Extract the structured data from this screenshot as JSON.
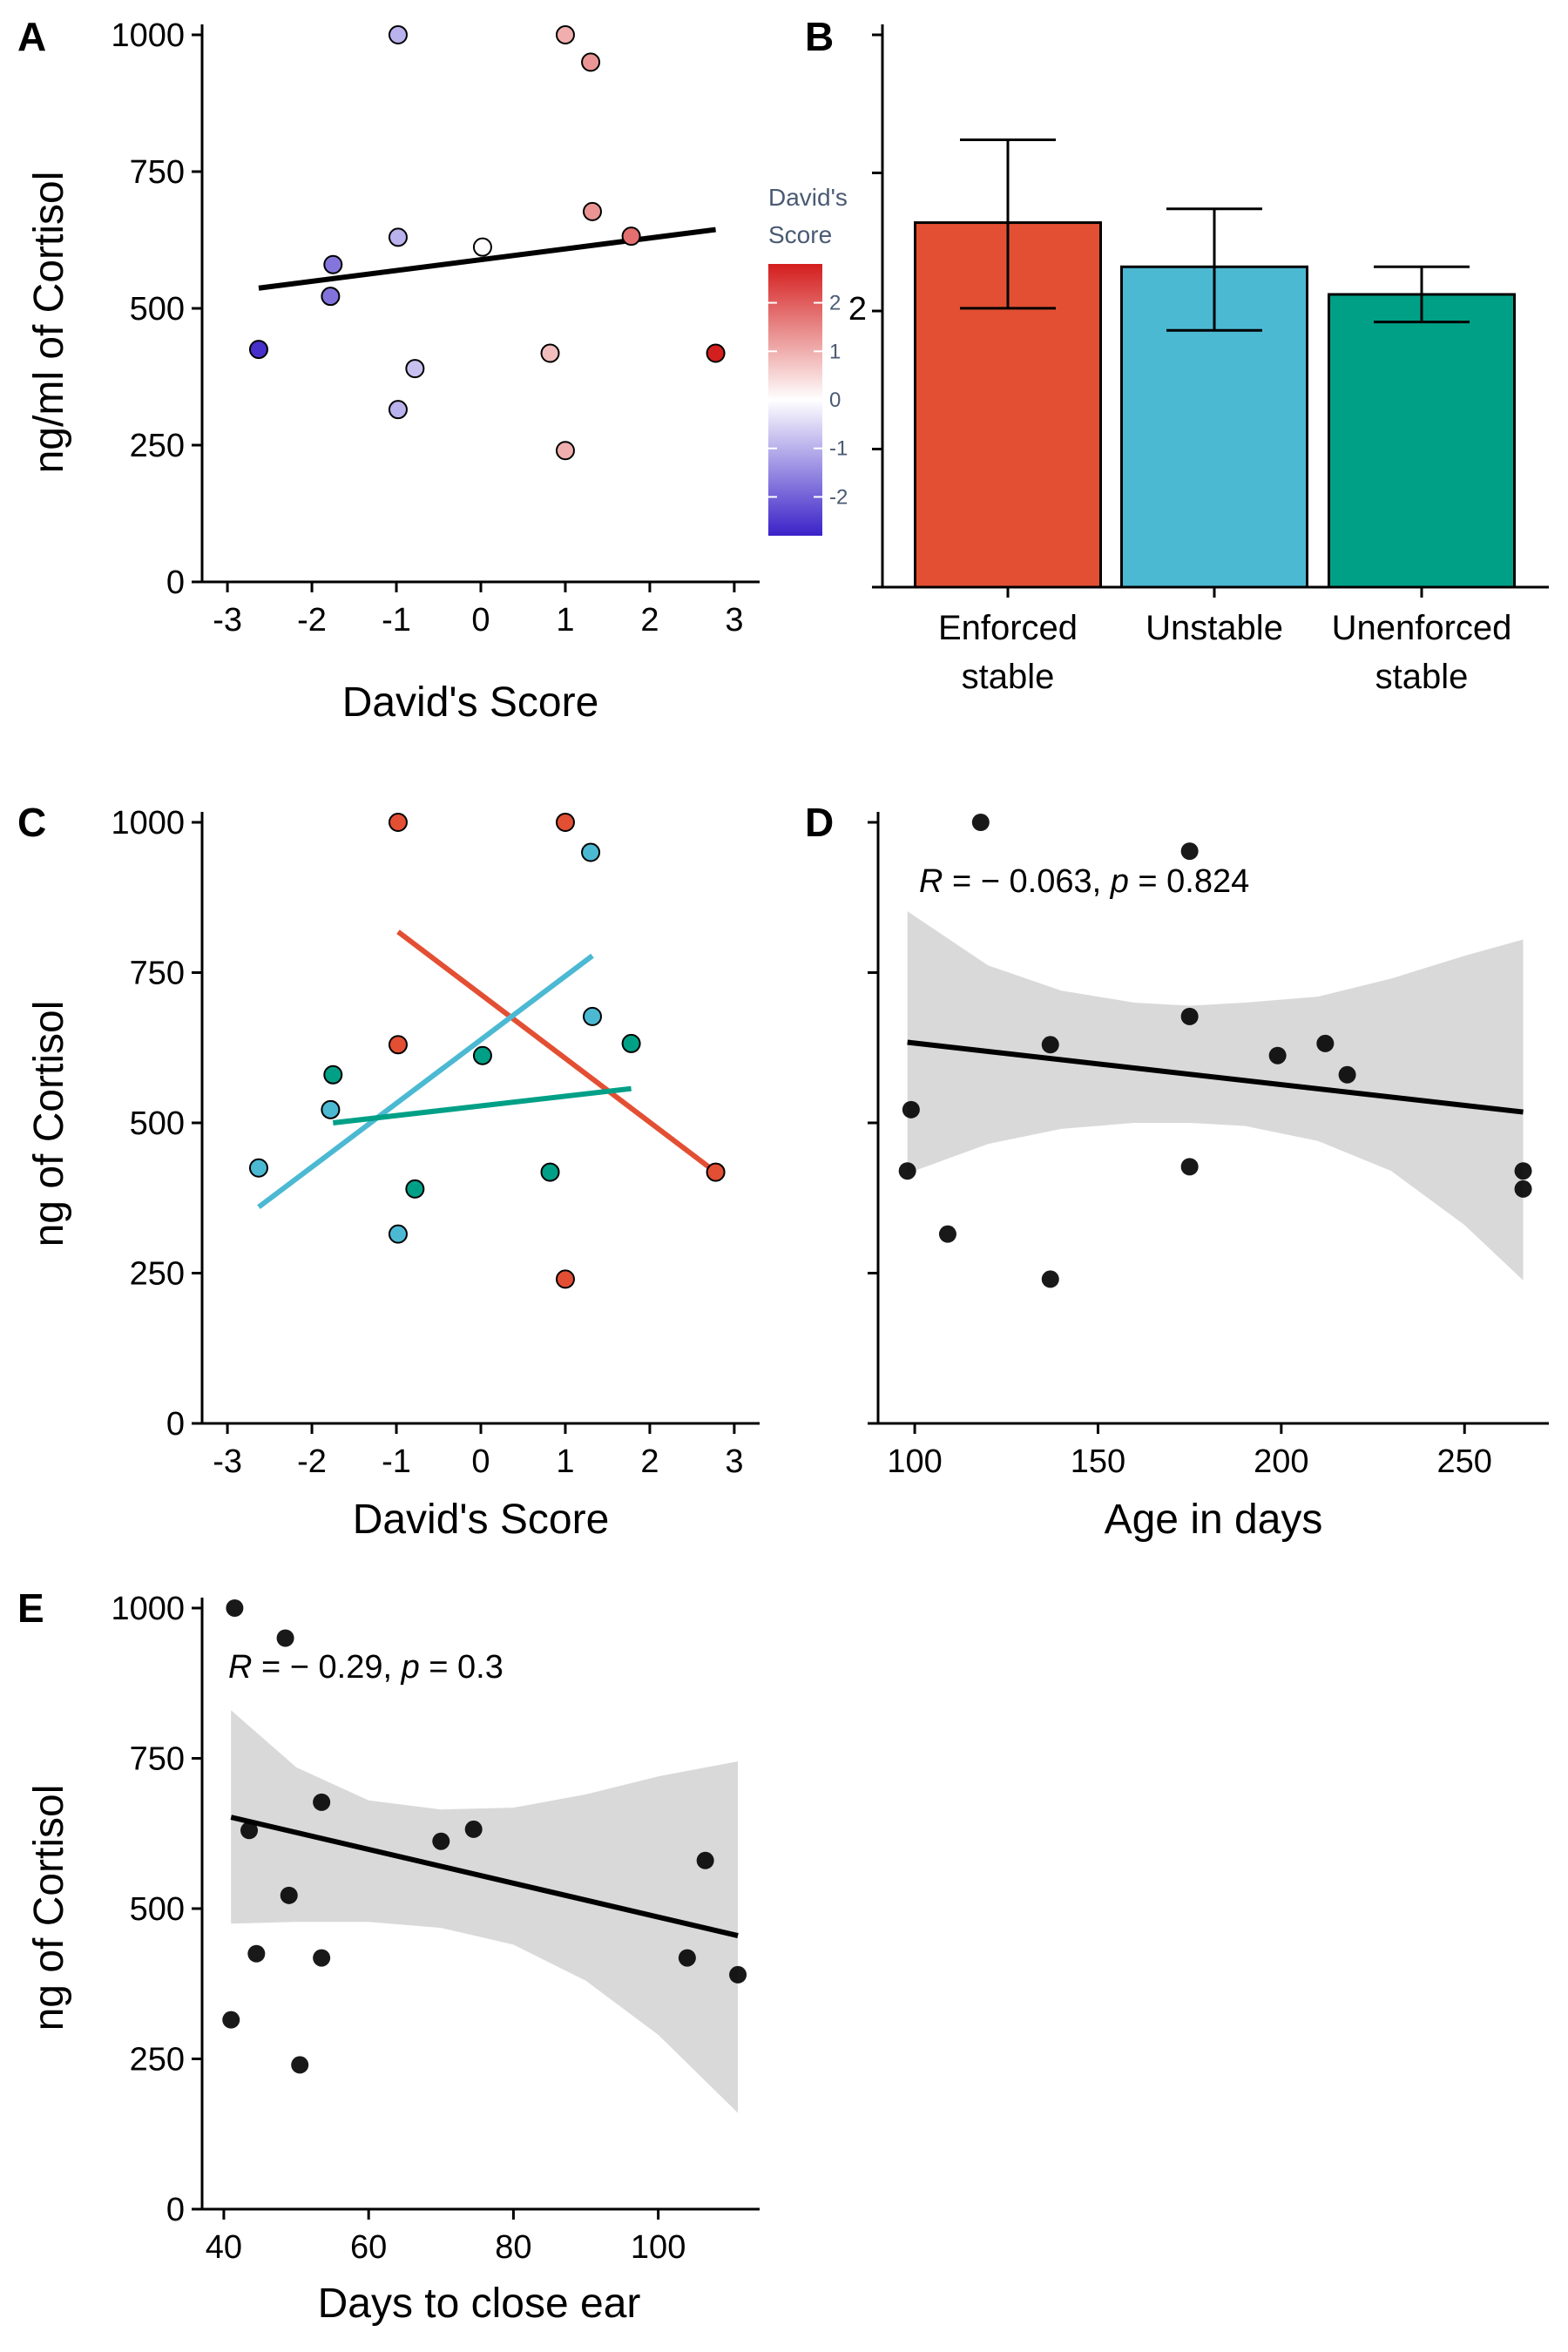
{
  "figure": {
    "panels": [
      "A",
      "B",
      "C",
      "D",
      "E"
    ]
  },
  "chart_data": [
    {
      "panel": "A",
      "type": "scatter",
      "xlabel": "David's Score",
      "ylabel": "ng/ml of Cortisol",
      "xlim": [
        -3.3,
        3.3
      ],
      "ylim": [
        0,
        1000
      ],
      "xticks": [
        -3,
        -2,
        -1,
        0,
        1,
        2,
        3
      ],
      "yticks": [
        0,
        250,
        500,
        750,
        1000
      ],
      "color_scale": {
        "title_line1": "David's",
        "title_line2": "Score",
        "ticks": [
          -2,
          -1,
          0,
          1,
          2
        ],
        "domain": [
          -2.8,
          2.8
        ],
        "low": "#3a22c8",
        "mid": "#ffffff",
        "high": "#d41d1d"
      },
      "points": [
        {
          "x": -2.63,
          "y": 425,
          "c": -2.63
        },
        {
          "x": -1.75,
          "y": 580,
          "c": -1.75
        },
        {
          "x": -1.78,
          "y": 522,
          "c": -1.78
        },
        {
          "x": -0.98,
          "y": 1000,
          "c": -0.98
        },
        {
          "x": -0.98,
          "y": 630,
          "c": -0.98
        },
        {
          "x": -0.98,
          "y": 315,
          "c": -0.98
        },
        {
          "x": -0.78,
          "y": 390,
          "c": -0.78
        },
        {
          "x": 0.02,
          "y": 612,
          "c": 0.02
        },
        {
          "x": 0.82,
          "y": 418,
          "c": 0.82
        },
        {
          "x": 1.0,
          "y": 1000,
          "c": 1.0
        },
        {
          "x": 1.0,
          "y": 240,
          "c": 1.0
        },
        {
          "x": 1.3,
          "y": 950,
          "c": 1.3
        },
        {
          "x": 1.32,
          "y": 677,
          "c": 1.32
        },
        {
          "x": 1.78,
          "y": 632,
          "c": 1.78
        },
        {
          "x": 2.78,
          "y": 418,
          "c": 2.78
        }
      ],
      "trend": {
        "x": [
          -2.63,
          2.78
        ],
        "y": [
          537,
          644
        ]
      }
    },
    {
      "panel": "B",
      "type": "bar",
      "categories_line1": [
        "Enforced",
        "Unstable",
        "Unenforced"
      ],
      "categories_line2": [
        "stable",
        "",
        "stable"
      ],
      "values": [
        660,
        580,
        530
      ],
      "error_low": [
        505,
        465,
        480
      ],
      "error_high": [
        810,
        685,
        580
      ],
      "colors": [
        "#e34f33",
        "#4cb9d3",
        "#00a087"
      ],
      "ylim": [
        0,
        1000
      ],
      "ytick_positions": [
        0,
        250,
        500,
        750,
        1000
      ],
      "ytick_labels": {
        "500": "2"
      }
    },
    {
      "panel": "C",
      "type": "scatter",
      "xlabel": "David's Score",
      "ylabel": "ng of Cortisol",
      "xlim": [
        -3.3,
        3.3
      ],
      "ylim": [
        0,
        1000
      ],
      "xticks": [
        -3,
        -2,
        -1,
        0,
        1,
        2,
        3
      ],
      "yticks": [
        0,
        250,
        500,
        750,
        1000
      ],
      "groups": [
        {
          "name": "Enforced stable",
          "color": "#e34f33",
          "points": [
            {
              "x": -0.98,
              "y": 1000
            },
            {
              "x": -0.98,
              "y": 630
            },
            {
              "x": 1.0,
              "y": 1000
            },
            {
              "x": 1.0,
              "y": 240
            },
            {
              "x": 2.78,
              "y": 418
            }
          ],
          "trend": {
            "x": [
              -0.98,
              2.78
            ],
            "y": [
              818,
              418
            ]
          }
        },
        {
          "name": "Unstable",
          "color": "#4cb9d3",
          "points": [
            {
              "x": -2.63,
              "y": 425
            },
            {
              "x": -1.78,
              "y": 522
            },
            {
              "x": -0.98,
              "y": 315
            },
            {
              "x": 1.3,
              "y": 950
            },
            {
              "x": 1.32,
              "y": 677
            }
          ],
          "trend": {
            "x": [
              -2.63,
              1.32
            ],
            "y": [
              360,
              778
            ]
          }
        },
        {
          "name": "Unenforced stable",
          "color": "#00a087",
          "points": [
            {
              "x": -1.75,
              "y": 580
            },
            {
              "x": -0.78,
              "y": 390
            },
            {
              "x": 0.02,
              "y": 612
            },
            {
              "x": 0.82,
              "y": 418
            },
            {
              "x": 1.78,
              "y": 632
            }
          ],
          "trend": {
            "x": [
              -1.75,
              1.78
            ],
            "y": [
              500,
              557
            ]
          }
        }
      ]
    },
    {
      "panel": "D",
      "type": "scatter",
      "xlabel": "Age in days",
      "ylabel": "",
      "xlim": [
        90,
        273
      ],
      "ylim": [
        0,
        1000
      ],
      "xticks": [
        100,
        150,
        200,
        250
      ],
      "yticks": [
        0,
        250,
        500,
        750,
        1000
      ],
      "annotation": {
        "r_label": "R",
        "r_text": " = − 0.063, ",
        "p_label": "p",
        "p_text": " = 0.824"
      },
      "points": [
        {
          "x": 118,
          "y": 1000
        },
        {
          "x": 175,
          "y": 952
        },
        {
          "x": 137,
          "y": 630
        },
        {
          "x": 175,
          "y": 677
        },
        {
          "x": 199,
          "y": 612
        },
        {
          "x": 212,
          "y": 632
        },
        {
          "x": 218,
          "y": 580
        },
        {
          "x": 99,
          "y": 522
        },
        {
          "x": 98,
          "y": 420
        },
        {
          "x": 175,
          "y": 427
        },
        {
          "x": 109,
          "y": 315
        },
        {
          "x": 137,
          "y": 240
        },
        {
          "x": 266,
          "y": 420
        },
        {
          "x": 266,
          "y": 390
        }
      ],
      "trend": {
        "x": [
          98,
          266
        ],
        "y": [
          634,
          518
        ]
      },
      "ci": {
        "x": [
          98,
          120,
          140,
          160,
          175,
          190,
          210,
          230,
          250,
          266
        ],
        "upper": [
          852,
          762,
          720,
          700,
          695,
          700,
          710,
          740,
          778,
          805
        ],
        "lower": [
          416,
          465,
          490,
          500,
          500,
          495,
          470,
          420,
          330,
          238
        ]
      }
    },
    {
      "panel": "E",
      "type": "scatter",
      "xlabel": "Days to close ear",
      "ylabel": "ng of Cortisol",
      "xlim": [
        37,
        114
      ],
      "ylim": [
        0,
        1000
      ],
      "xticks": [
        40,
        60,
        80,
        100
      ],
      "yticks": [
        0,
        250,
        500,
        750,
        1000
      ],
      "annotation": {
        "r_label": "R",
        "r_text": " = − 0.29, ",
        "p_label": "p",
        "p_text": " = 0.3"
      },
      "points": [
        {
          "x": 41.5,
          "y": 1000
        },
        {
          "x": 48.5,
          "y": 950
        },
        {
          "x": 43.5,
          "y": 630
        },
        {
          "x": 53.5,
          "y": 677
        },
        {
          "x": 70,
          "y": 612
        },
        {
          "x": 74.5,
          "y": 632
        },
        {
          "x": 106.5,
          "y": 580
        },
        {
          "x": 49,
          "y": 522
        },
        {
          "x": 44.5,
          "y": 425
        },
        {
          "x": 53.5,
          "y": 418
        },
        {
          "x": 104,
          "y": 418
        },
        {
          "x": 111,
          "y": 390
        },
        {
          "x": 41,
          "y": 315
        },
        {
          "x": 50.5,
          "y": 240
        }
      ],
      "trend": {
        "x": [
          41,
          111
        ],
        "y": [
          652,
          455
        ]
      },
      "ci": {
        "x": [
          41,
          50,
          60,
          70,
          80,
          90,
          100,
          111
        ],
        "upper": [
          830,
          735,
          680,
          665,
          668,
          690,
          720,
          745
        ],
        "lower": [
          475,
          478,
          478,
          468,
          440,
          380,
          290,
          160
        ]
      }
    }
  ]
}
